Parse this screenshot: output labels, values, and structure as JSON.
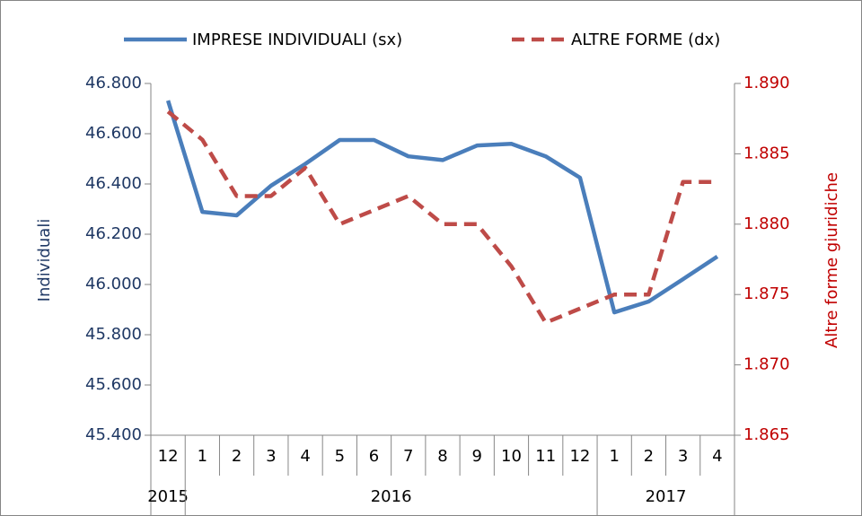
{
  "chart_data": {
    "type": "line",
    "categories": [
      "12",
      "1",
      "2",
      "3",
      "4",
      "5",
      "6",
      "7",
      "8",
      "9",
      "10",
      "11",
      "12",
      "1",
      "2",
      "3",
      "4"
    ],
    "year_labels": [
      "2015",
      "2016",
      "2017"
    ],
    "y_label": "Individuali",
    "y2_label": "Altre forme giuridiche",
    "series": [
      {
        "name": "IMPRESE INDIVIDUALI (sx)",
        "color": "#4a7ebb",
        "dash": false,
        "values": [
          46732,
          46289,
          46275,
          46393,
          46480,
          46575,
          46575,
          46510,
          46495,
          46553,
          46560,
          46510,
          46425,
          45889,
          45932,
          46021,
          46111
        ]
      },
      {
        "name": "ALTRE FORME (dx)",
        "color": "#be4b48",
        "dash": true,
        "axis": "y2",
        "values": [
          1888,
          1886,
          1882,
          1882,
          1884,
          1880,
          1881,
          1882,
          1880,
          1880,
          1877,
          1873,
          1874,
          1875,
          1875,
          1883,
          1883
        ]
      }
    ],
    "ylim": [
      45400,
      46800
    ],
    "yticks": [
      {
        "value": 45400,
        "label": "45.400"
      },
      {
        "value": 45600,
        "label": "45.600"
      },
      {
        "value": 45800,
        "label": "45.800"
      },
      {
        "value": 46000,
        "label": "46.000"
      },
      {
        "value": 46200,
        "label": "46.200"
      },
      {
        "value": 46400,
        "label": "46.400"
      },
      {
        "value": 46600,
        "label": "46.600"
      },
      {
        "value": 46800,
        "label": "46.800"
      }
    ],
    "y2lim": [
      1865,
      1890
    ],
    "y2ticks": [
      {
        "value": 1865,
        "label": "1.865"
      },
      {
        "value": 1870,
        "label": "1.870"
      },
      {
        "value": 1875,
        "label": "1.875"
      },
      {
        "value": 1880,
        "label": "1.880"
      },
      {
        "value": 1885,
        "label": "1.885"
      },
      {
        "value": 1890,
        "label": "1.890"
      }
    ],
    "ytick_color": "#1f3864",
    "y2tick_color": "#c00000",
    "grid": false,
    "legend": "top"
  }
}
